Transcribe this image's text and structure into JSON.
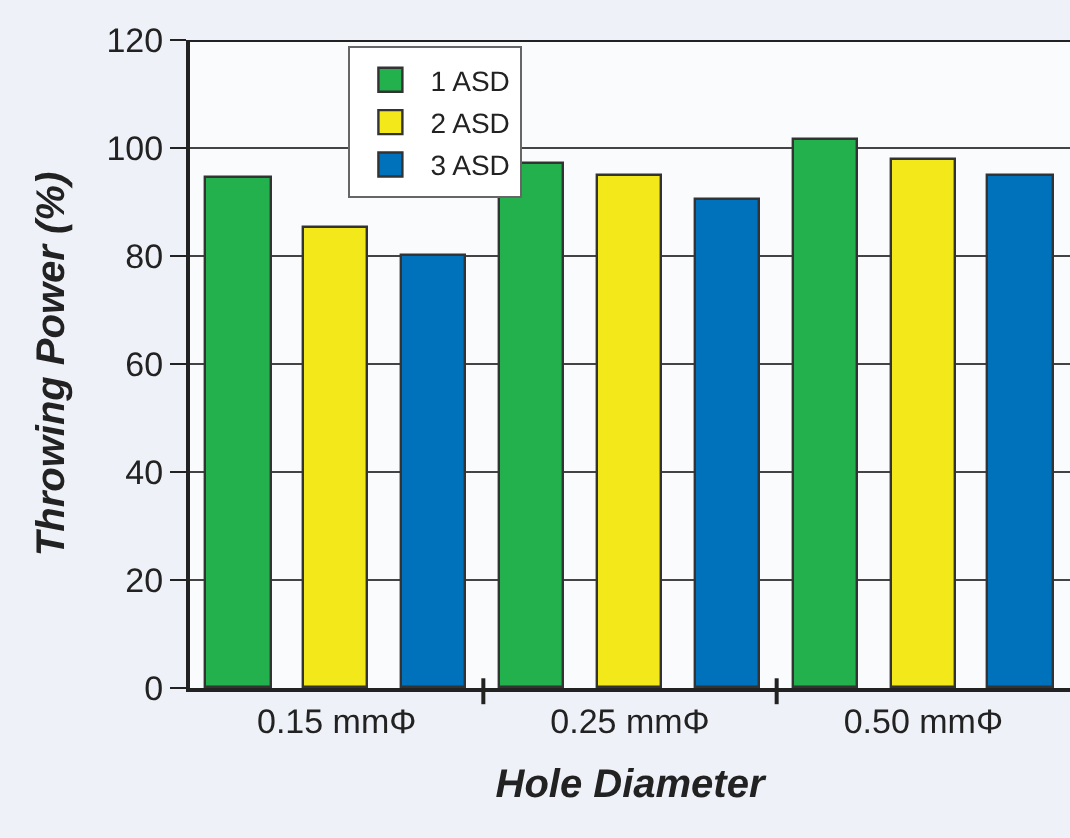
{
  "chart_data": {
    "type": "bar",
    "xlabel": "Hole Diameter",
    "ylabel": "Throwing Power (%)",
    "categories": [
      "0.15 mmΦ",
      "0.25 mmΦ",
      "0.50 mmΦ"
    ],
    "series": [
      {
        "name": "1 ASD",
        "color": "#23b14d",
        "values": [
          94.5,
          97.2,
          101.5
        ]
      },
      {
        "name": "2 ASD",
        "color": "#f2e81a",
        "values": [
          85.2,
          95.0,
          97.7
        ]
      },
      {
        "name": "3 ASD",
        "color": "#0072bc",
        "values": [
          80.1,
          90.3,
          95.0
        ]
      }
    ],
    "ylim": [
      0,
      120
    ],
    "yticks": [
      0,
      20,
      40,
      60,
      80,
      100,
      120
    ],
    "grid": "y",
    "legend": "top left"
  }
}
